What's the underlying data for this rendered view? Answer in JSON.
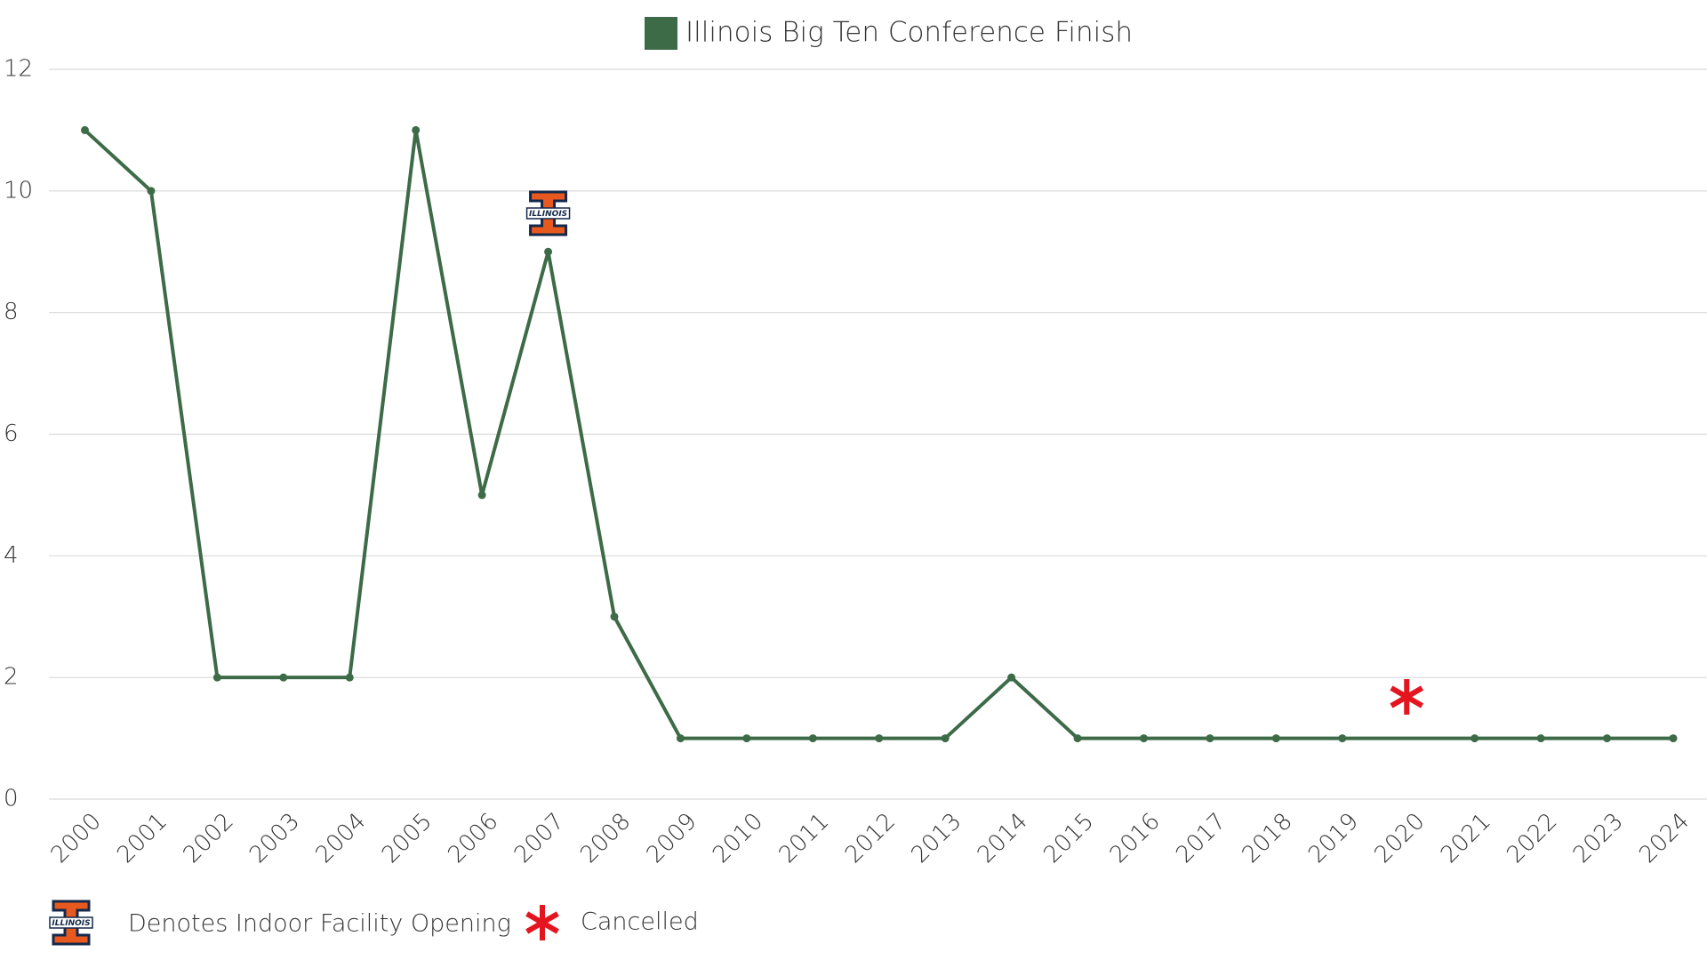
{
  "chart_data": {
    "type": "line",
    "series": [
      {
        "name": "Illinois Big Ten Conference Finish",
        "color": "#3d6b47",
        "values": [
          11,
          10,
          2,
          2,
          2,
          11,
          5,
          9,
          3,
          1,
          1,
          1,
          1,
          1,
          2,
          1,
          1,
          1,
          1,
          1,
          null,
          1,
          1,
          1,
          1
        ]
      }
    ],
    "categories": [
      "2000",
      "2001",
      "2002",
      "2003",
      "2004",
      "2005",
      "2006",
      "2007",
      "2008",
      "2009",
      "2010",
      "2011",
      "2012",
      "2013",
      "2014",
      "2015",
      "2016",
      "2017",
      "2018",
      "2019",
      "2020",
      "2021",
      "2022",
      "2023",
      "2024"
    ],
    "ylim": [
      0,
      12
    ],
    "yticks": [
      0,
      2,
      4,
      6,
      8,
      10,
      12
    ],
    "grid": true,
    "legend": "top",
    "span_gaps": true,
    "logo_text": "ILLINOIS",
    "annotations": [
      "Denotes Indoor Facility Opening",
      "Cancelled"
    ]
  }
}
